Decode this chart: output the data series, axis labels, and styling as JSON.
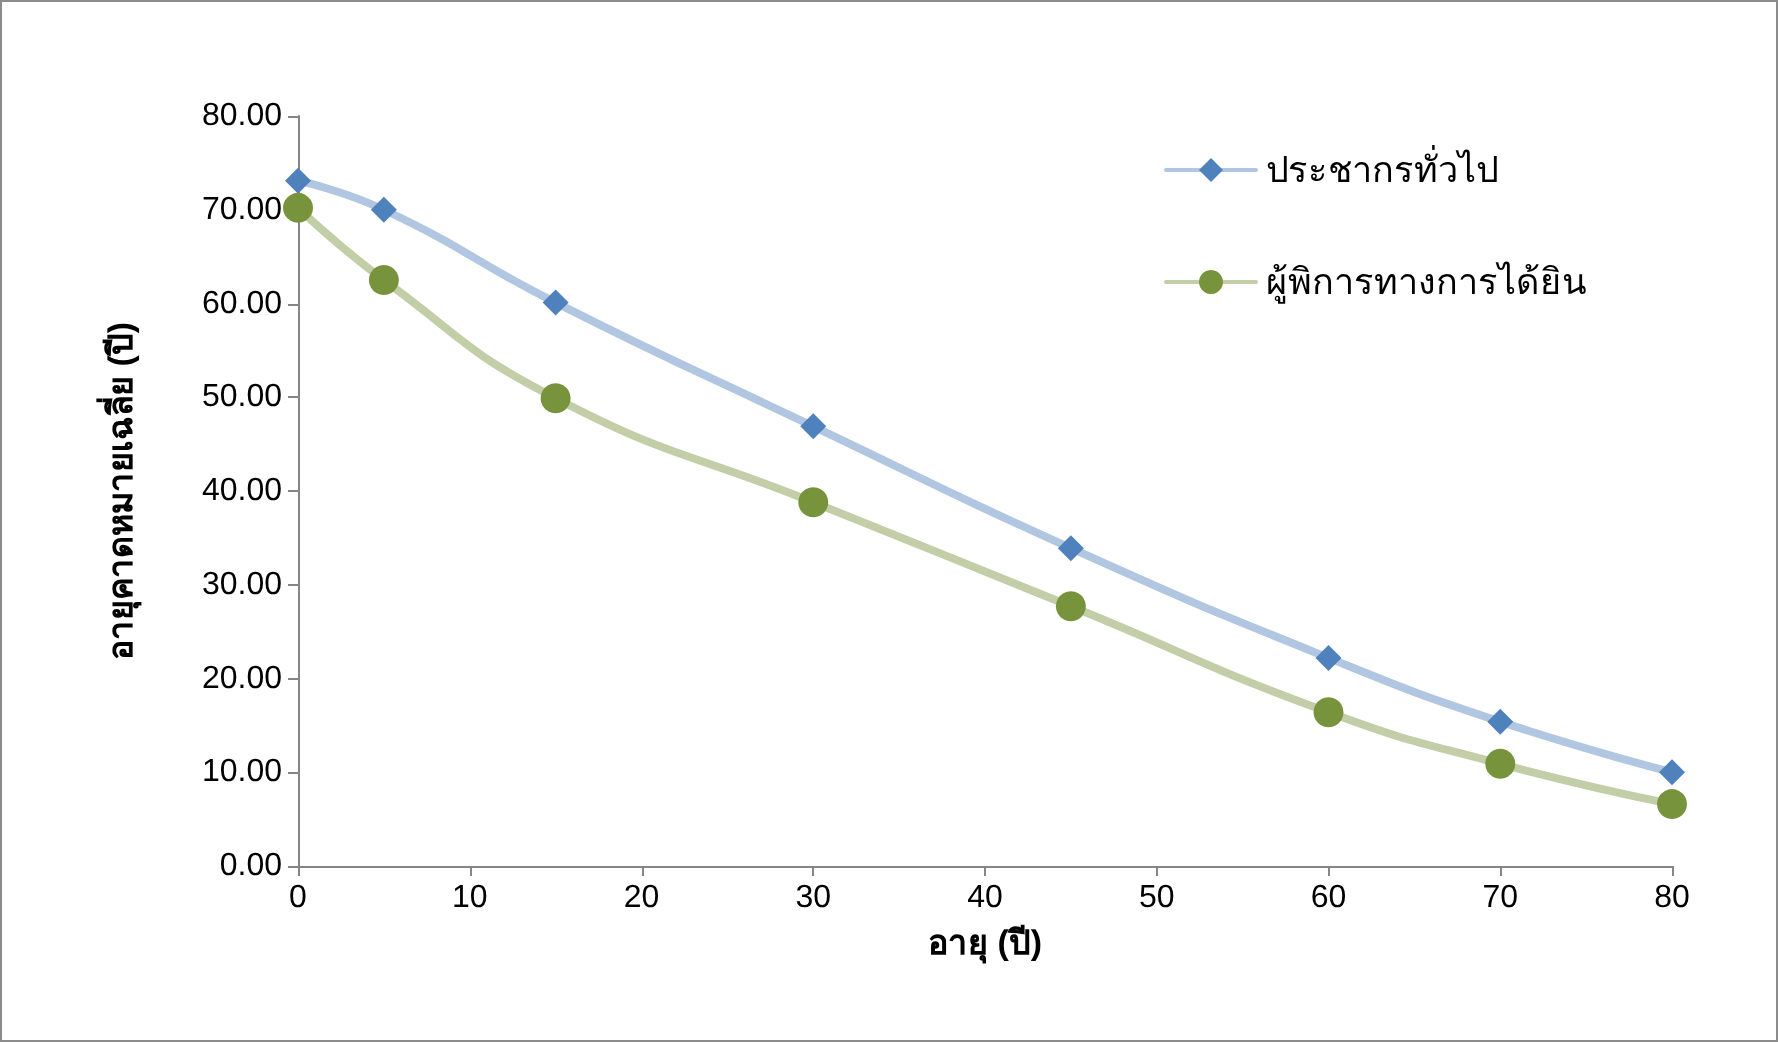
{
  "chart_data": {
    "type": "line",
    "xlabel": "อายุ (ปี)",
    "ylabel": "อายุคาดหมายเฉลี่ย (ปี)",
    "x": [
      0,
      5,
      15,
      30,
      45,
      60,
      70,
      80
    ],
    "series": [
      {
        "name": "ประชากรทั่วไป",
        "color": "#4f81bd",
        "marker": "diamond",
        "values": [
          73.1,
          70.0,
          60.1,
          46.9,
          33.9,
          22.2,
          15.4,
          10.0
        ]
      },
      {
        "name": "ผู้พิการทางการได้ยิน",
        "color": "#77933c",
        "marker": "circle",
        "values": [
          70.2,
          62.5,
          49.9,
          38.8,
          27.7,
          16.4,
          10.9,
          6.6
        ]
      }
    ],
    "xlim": [
      0,
      80
    ],
    "xticks": [
      0,
      10,
      20,
      30,
      40,
      50,
      60,
      70,
      80
    ],
    "ylim": [
      0,
      80
    ],
    "yticks": [
      {
        "value": 0,
        "label": "0.00"
      },
      {
        "value": 10,
        "label": "10.00"
      },
      {
        "value": 20,
        "label": "20.00"
      },
      {
        "value": 30,
        "label": "30.00"
      },
      {
        "value": 40,
        "label": "40.00"
      },
      {
        "value": 50,
        "label": "50.00"
      },
      {
        "value": 60,
        "label": "60.00"
      },
      {
        "value": 70,
        "label": "70.00"
      },
      {
        "value": 80,
        "label": "80.00"
      }
    ],
    "grid": false,
    "legend": "top right"
  }
}
